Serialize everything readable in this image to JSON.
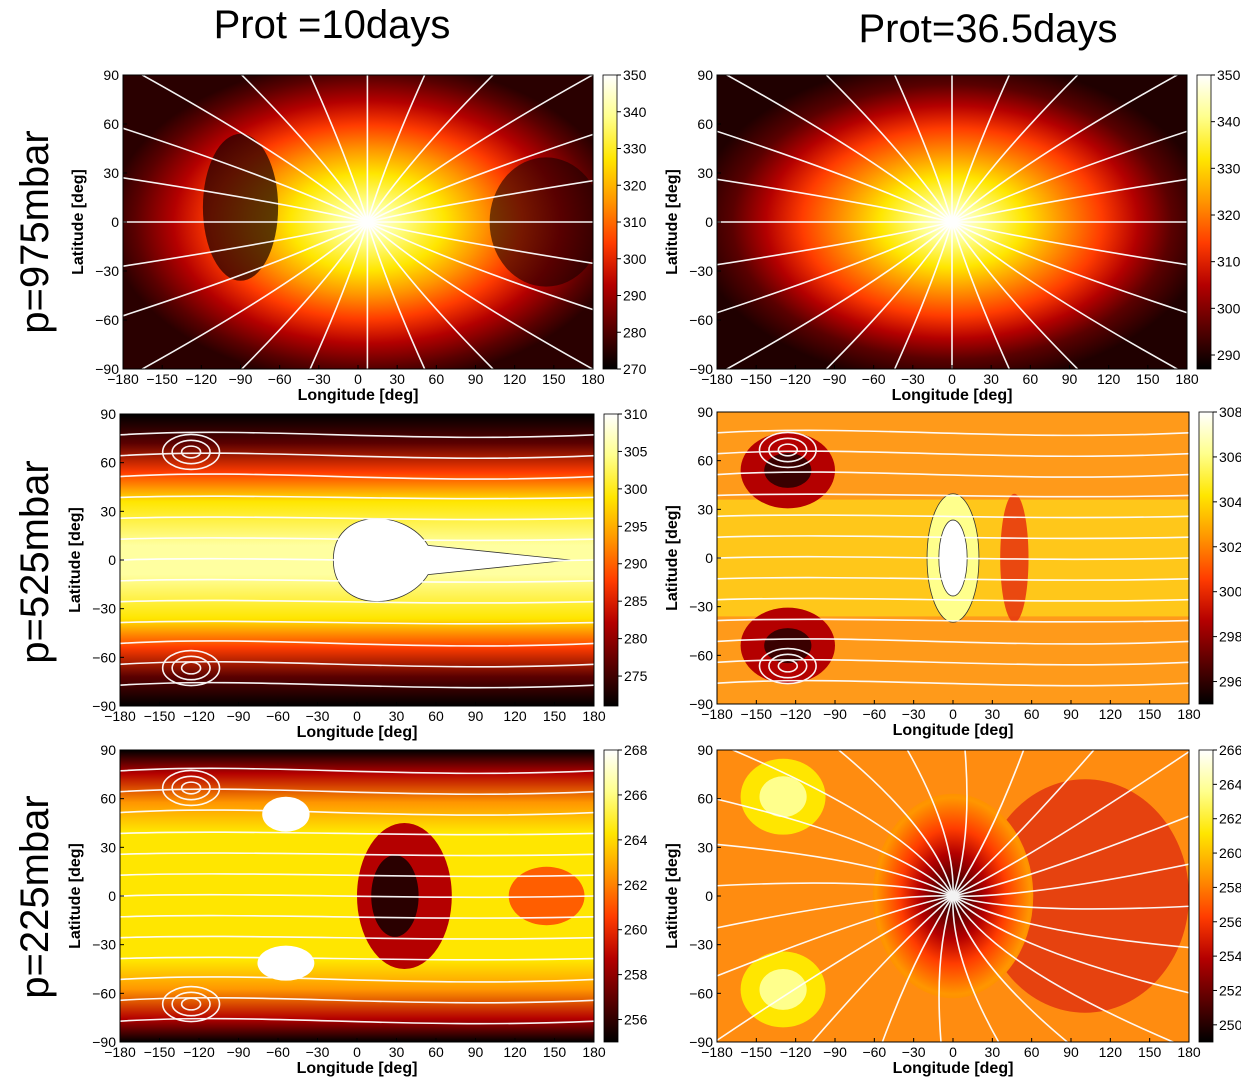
{
  "figure": {
    "columns": [
      "Prot =10days",
      "Prot=36.5days"
    ],
    "rows": [
      "p=975mbar",
      "p=525mbar",
      "p=225mbar"
    ]
  },
  "colors": {
    "colormap": [
      "#000000",
      "#5a0000",
      "#b40000",
      "#ff3c00",
      "#ff9600",
      "#ffe600",
      "#ffff8c",
      "#ffffff"
    ],
    "streamline": "#ffffff",
    "contour_line": "#222222"
  },
  "chart_data": [
    {
      "type": "heatmap",
      "panel": "975-10",
      "xlabel": "Longitude [deg]",
      "ylabel": "Latitude [deg]",
      "xlim": [
        -180,
        180
      ],
      "ylim": [
        -90,
        90
      ],
      "xticks": [
        -180,
        -150,
        -120,
        -90,
        -60,
        -30,
        0,
        30,
        60,
        90,
        120,
        150,
        180
      ],
      "yticks": [
        -90,
        -60,
        -30,
        0,
        30,
        60,
        90
      ],
      "colorbar": {
        "range": [
          270,
          350
        ],
        "ticks": [
          270,
          280,
          290,
          300,
          310,
          320,
          330,
          340,
          350
        ]
      },
      "hot_spot": {
        "lon": 0,
        "lat": 0,
        "value": 350
      },
      "streamlines": "divergent from substellar point"
    },
    {
      "type": "heatmap",
      "panel": "975-36.5",
      "xlabel": "Longitude [deg]",
      "ylabel": "Latitude [deg]",
      "xlim": [
        -180,
        180
      ],
      "ylim": [
        -90,
        90
      ],
      "xticks": [
        -180,
        -150,
        -120,
        -90,
        -60,
        -30,
        0,
        30,
        60,
        90,
        120,
        150,
        180
      ],
      "yticks": [
        -90,
        -60,
        -30,
        0,
        30,
        60,
        90
      ],
      "colorbar": {
        "range": [
          287,
          350
        ],
        "ticks": [
          290,
          300,
          310,
          320,
          330,
          340,
          350
        ]
      },
      "hot_spot": {
        "lon": 0,
        "lat": 0,
        "value": 350
      },
      "streamlines": "divergent from substellar point, convergent near -150"
    },
    {
      "type": "heatmap",
      "panel": "525-10",
      "xlabel": "Longitude [deg]",
      "ylabel": "Latitude [deg]",
      "xlim": [
        -180,
        180
      ],
      "ylim": [
        -90,
        90
      ],
      "xticks": [
        -180,
        -150,
        -120,
        -90,
        -60,
        -30,
        0,
        30,
        60,
        90,
        120,
        150,
        180
      ],
      "yticks": [
        -90,
        -60,
        -30,
        0,
        30,
        60,
        90
      ],
      "colorbar": {
        "range": [
          271,
          310
        ],
        "ticks": [
          275,
          280,
          285,
          290,
          295,
          300,
          305,
          310
        ]
      },
      "hot_spot": {
        "lon": 30,
        "lat": 0,
        "value": 310
      },
      "streamlines": "zonal flow with polar vortices at -120"
    },
    {
      "type": "heatmap",
      "panel": "525-36.5",
      "xlabel": "Longitude [deg]",
      "ylabel": "Latitude [deg]",
      "xlim": [
        -180,
        180
      ],
      "ylim": [
        -90,
        90
      ],
      "xticks": [
        -180,
        -150,
        -120,
        -90,
        -60,
        -30,
        0,
        30,
        60,
        90,
        120,
        150,
        180
      ],
      "yticks": [
        -90,
        -60,
        -30,
        0,
        30,
        60,
        90
      ],
      "colorbar": {
        "range": [
          295,
          308
        ],
        "ticks": [
          296,
          298,
          300,
          302,
          304,
          306,
          308
        ]
      },
      "hot_spot": {
        "lon": 0,
        "lat": 0,
        "value": 308
      },
      "streamlines": "vortices at -120 lon, +/-65 lat"
    },
    {
      "type": "heatmap",
      "panel": "225-10",
      "xlabel": "Longitude [deg]",
      "ylabel": "Latitude [deg]",
      "xlim": [
        -180,
        180
      ],
      "ylim": [
        -90,
        90
      ],
      "xticks": [
        -180,
        -150,
        -120,
        -90,
        -60,
        -30,
        0,
        30,
        60,
        90,
        120,
        150,
        180
      ],
      "yticks": [
        -90,
        -60,
        -30,
        0,
        30,
        60,
        90
      ],
      "colorbar": {
        "range": [
          255,
          268
        ],
        "ticks": [
          256,
          258,
          260,
          262,
          264,
          266,
          268
        ]
      },
      "cold_spot": {
        "lon": 20,
        "lat": 0,
        "value": 255
      },
      "streamlines": "zonal flow with polar vortices at -120"
    },
    {
      "type": "heatmap",
      "panel": "225-36.5",
      "xlabel": "Longitude [deg]",
      "ylabel": "Latitude [deg]",
      "xlim": [
        -180,
        180
      ],
      "ylim": [
        -90,
        90
      ],
      "xticks": [
        -180,
        -150,
        -120,
        -90,
        -60,
        -30,
        0,
        30,
        60,
        90,
        120,
        150,
        180
      ],
      "yticks": [
        -90,
        -60,
        -30,
        0,
        30,
        60,
        90
      ],
      "colorbar": {
        "range": [
          249,
          266
        ],
        "ticks": [
          250,
          252,
          254,
          256,
          258,
          260,
          262,
          264,
          266
        ]
      },
      "cold_spot": {
        "lon": 0,
        "lat": 0,
        "value": 249
      },
      "streamlines": "convergent into substellar point"
    }
  ]
}
